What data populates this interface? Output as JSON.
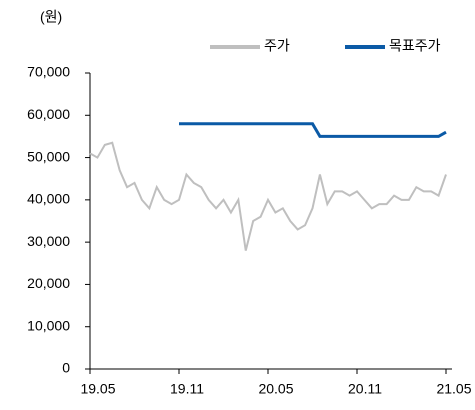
{
  "chart_data": {
    "type": "line",
    "unit": "(원)",
    "categories": [
      "19.05",
      null,
      null,
      null,
      null,
      null,
      null,
      null,
      null,
      null,
      null,
      null,
      "19.11",
      null,
      null,
      null,
      null,
      null,
      null,
      null,
      null,
      null,
      null,
      null,
      "20.05",
      null,
      null,
      null,
      null,
      null,
      null,
      null,
      null,
      null,
      null,
      null,
      "20.11",
      null,
      null,
      null,
      null,
      null,
      null,
      null,
      null,
      null,
      null,
      null,
      "21.05"
    ],
    "series": [
      {
        "name": "주가",
        "color": "#bfbfbf",
        "values": [
          51000,
          50000,
          53000,
          53500,
          47000,
          43000,
          44000,
          40000,
          38000,
          43000,
          40000,
          39000,
          40000,
          46000,
          44000,
          43000,
          40000,
          38000,
          40000,
          37000,
          40000,
          28000,
          35000,
          36000,
          40000,
          37000,
          38000,
          35000,
          33000,
          34000,
          38000,
          46000,
          39000,
          42000,
          42000,
          41000,
          42000,
          40000,
          38000,
          39000,
          39000,
          41000,
          40000,
          40000,
          43000,
          42000,
          42000,
          41000,
          46000
        ]
      },
      {
        "name": "목표주가",
        "color": "#0b5aa6",
        "values": [
          null,
          null,
          null,
          null,
          null,
          null,
          null,
          null,
          null,
          null,
          null,
          null,
          58000,
          58000,
          58000,
          58000,
          58000,
          58000,
          58000,
          58000,
          58000,
          58000,
          58000,
          58000,
          58000,
          58000,
          58000,
          58000,
          58000,
          58000,
          58000,
          55000,
          55000,
          55000,
          55000,
          55000,
          55000,
          55000,
          55000,
          55000,
          55000,
          55000,
          55000,
          55000,
          55000,
          55000,
          55000,
          55000,
          56000
        ]
      }
    ],
    "ylim": [
      0,
      70000
    ],
    "yticks": [
      0,
      {
        "value": 10000,
        "label": "10,000"
      },
      {
        "value": 20000,
        "label": "20,000"
      },
      {
        "value": 30000,
        "label": "30,000"
      },
      {
        "value": 40000,
        "label": "40,000"
      },
      {
        "value": 50000,
        "label": "50,000"
      },
      {
        "value": 60000,
        "label": "60,000"
      },
      {
        "value": 70000,
        "label": "70,000"
      }
    ],
    "legend": "top-right"
  }
}
